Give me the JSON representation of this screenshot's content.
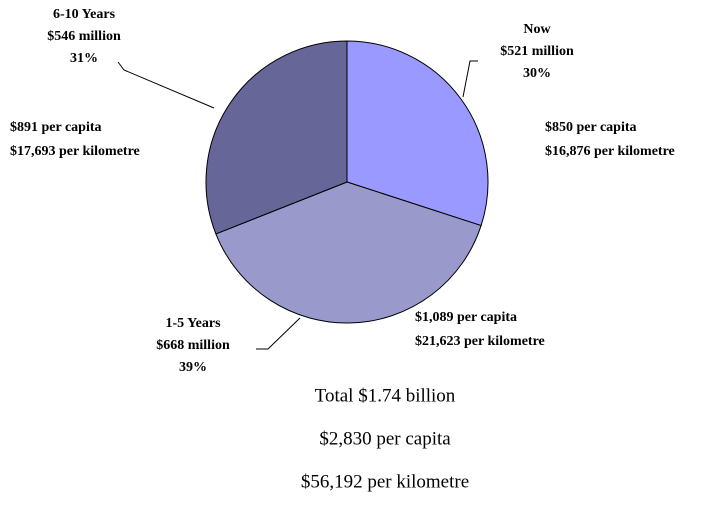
{
  "chart_data": {
    "type": "pie",
    "categories": [
      "Now",
      "1-5 Years",
      "6-10 Years"
    ],
    "values": [
      30,
      39,
      31
    ],
    "value_labels": [
      "30%",
      "39%",
      "31%"
    ],
    "amounts": [
      "$521 million",
      "$668 million",
      "$546 million"
    ],
    "per_capita": [
      "$850 per capita",
      "$1,089 per capita",
      "$891 per capita"
    ],
    "per_km": [
      "$16,876 per kilometre",
      "$21,623 per kilometre",
      "$17,693 per kilometre"
    ],
    "colors": [
      "#9999ff",
      "#9999cc",
      "#666699"
    ],
    "totals": [
      "Total $1.74 billion",
      "$2,830 per capita",
      "$56,192 per kilometre"
    ]
  }
}
